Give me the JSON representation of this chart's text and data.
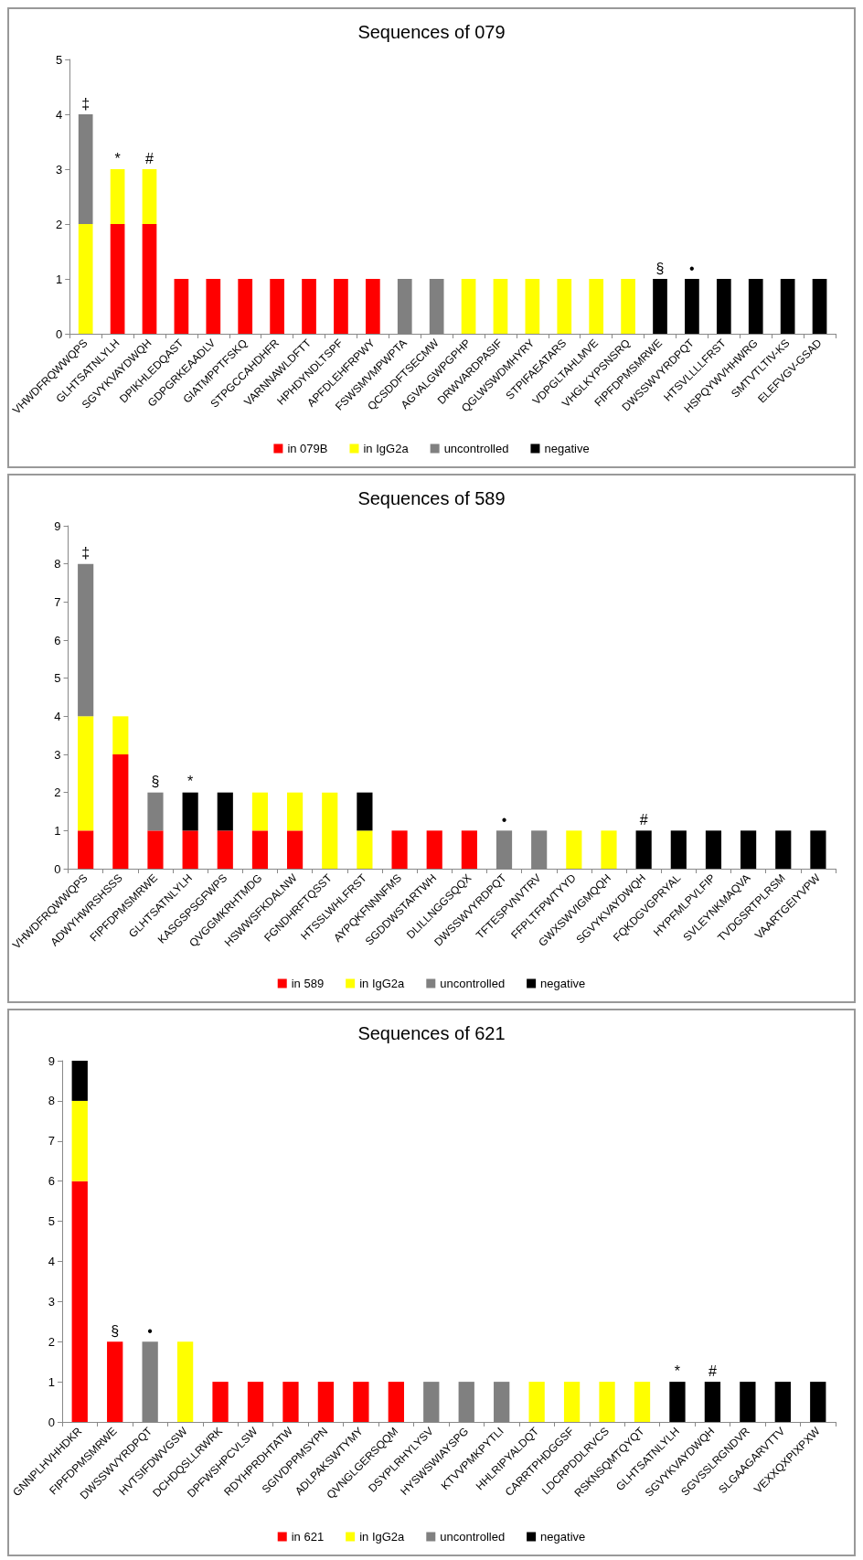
{
  "chart_data": [
    {
      "type": "bar",
      "title": "Sequences of 079",
      "stacked": true,
      "grid": false,
      "legend": "bottom",
      "categories": [
        "VHWDFRQWWQPS",
        "GLHTSATNLYLH",
        "SGVYKVAYDWQH",
        "DPIKHLEDQAST",
        "GDPGRKEAADLV",
        "GIATMPPTFSKQ",
        "STPGCCAHDHFR",
        "VARNNAWLDFTT",
        "HPHDYNDLTSPF",
        "APFDLEHFRPWY",
        "FSWSMVMPWPTA",
        "QCSDDFTSECMW",
        "AGVALGWPGPHP",
        "DRWVARDPASIF",
        "QGLWSWDMHYRY",
        "STPIFAEATARS",
        "VDPGLTAHLMVE",
        "VHGLKYPSNSRQ",
        "FIPFDPMSMRWE",
        "DWSSWVYRDPQT",
        "HTSVLLLLFRST",
        "HSPQYWVHHWRG",
        "SMTVTLTIV-KS",
        "ELEFVGV-GSAD"
      ],
      "series": [
        {
          "name": "in 079B",
          "color": "#ff0000",
          "values": [
            0,
            2,
            2,
            1,
            1,
            1,
            1,
            1,
            1,
            1,
            0,
            0,
            0,
            0,
            0,
            0,
            0,
            0,
            0,
            0,
            0,
            0,
            0,
            0
          ]
        },
        {
          "name": "in IgG2a",
          "color": "#ffff00",
          "values": [
            2,
            1,
            1,
            0,
            0,
            0,
            0,
            0,
            0,
            0,
            0,
            0,
            1,
            1,
            1,
            1,
            1,
            1,
            0,
            0,
            0,
            0,
            0,
            0
          ]
        },
        {
          "name": "uncontrolled",
          "color": "#808080",
          "values": [
            2,
            0,
            0,
            0,
            0,
            0,
            0,
            0,
            0,
            0,
            1,
            1,
            0,
            0,
            0,
            0,
            0,
            0,
            0,
            0,
            0,
            0,
            0,
            0
          ]
        },
        {
          "name": "negative",
          "color": "#000000",
          "values": [
            0,
            0,
            0,
            0,
            0,
            0,
            0,
            0,
            0,
            0,
            0,
            0,
            0,
            0,
            0,
            0,
            0,
            0,
            1,
            1,
            1,
            1,
            1,
            1
          ]
        }
      ],
      "ylim": [
        0,
        5
      ],
      "yticks": [
        0,
        1,
        2,
        3,
        4,
        5
      ],
      "annotations": [
        {
          "text": "‡",
          "x": "VHWDFRQWWQPS",
          "y": 4
        },
        {
          "text": "*",
          "x": "GLHTSATNLYLH",
          "y": 3
        },
        {
          "text": "#",
          "x": "SGVYKVAYDWQH",
          "y": 3
        },
        {
          "text": "§",
          "x": "FIPFDPMSMRWE",
          "y": 1
        },
        {
          "text": "•",
          "x": "DWSSWVYRDPQT",
          "y": 1
        }
      ]
    },
    {
      "type": "bar",
      "title": "Sequences of 589",
      "stacked": true,
      "grid": false,
      "legend": "bottom",
      "categories": [
        "VHWDFRQWWQPS",
        "ADWYHWRSHSSS",
        "FIPFDPMSMRWE",
        "GLHTSATNLYLH",
        "KASGSPSGFWPS",
        "QVGGMKRHTMDG",
        "HSWWSFKDALNW",
        "FGNDHRFTQSST",
        "HTSSLWHLFRST",
        "AYPQKFNNNFMS",
        "SGDDWSTARTWH",
        "DLILLNGGSQQX",
        "DWSSWVYRDPQT",
        "TFTESPVNVTRV",
        "FFPLTFPWTYYD",
        "GWXSWVIGMQQH",
        "SGVYKVAYDWQH",
        "FQKDGVGPRYAL",
        "HYPFMLPVLFIP",
        "SVLEYNKMAQVA",
        "TVDGSRTPLRSM",
        "VAARTGEIYVPW"
      ],
      "series": [
        {
          "name": "in 589",
          "color": "#ff0000",
          "values": [
            1,
            3,
            1,
            1,
            1,
            1,
            1,
            0,
            0,
            1,
            1,
            1,
            0,
            0,
            0,
            0,
            0,
            0,
            0,
            0,
            0,
            0
          ]
        },
        {
          "name": "in IgG2a",
          "color": "#ffff00",
          "values": [
            3,
            1,
            0,
            0,
            0,
            1,
            1,
            2,
            1,
            0,
            0,
            0,
            0,
            0,
            1,
            1,
            0,
            0,
            0,
            0,
            0,
            0
          ]
        },
        {
          "name": "uncontrolled",
          "color": "#808080",
          "values": [
            4,
            0,
            1,
            0,
            0,
            0,
            0,
            0,
            0,
            0,
            0,
            0,
            1,
            1,
            0,
            0,
            0,
            0,
            0,
            0,
            0,
            0
          ]
        },
        {
          "name": "negative",
          "color": "#000000",
          "values": [
            0,
            0,
            0,
            1,
            1,
            0,
            0,
            0,
            1,
            0,
            0,
            0,
            0,
            0,
            0,
            0,
            1,
            1,
            1,
            1,
            1,
            1
          ]
        }
      ],
      "ylim": [
        0,
        9
      ],
      "yticks": [
        0,
        1,
        2,
        3,
        4,
        5,
        6,
        7,
        8,
        9
      ],
      "annotations": [
        {
          "text": "‡",
          "x": "VHWDFRQWWQPS",
          "y": 8
        },
        {
          "text": "§",
          "x": "FIPFDPMSMRWE",
          "y": 2
        },
        {
          "text": "*",
          "x": "GLHTSATNLYLH",
          "y": 2
        },
        {
          "text": "•",
          "x": "DWSSWVYRDPQT",
          "y": 1
        },
        {
          "text": "#",
          "x": "SGVYKVAYDWQH",
          "y": 1
        }
      ]
    },
    {
      "type": "bar",
      "title": "Sequences of 621",
      "stacked": true,
      "grid": false,
      "legend": "bottom",
      "categories": [
        "GNNPLHVHHDKR",
        "FIPFDPMSMRWE",
        "DWSSWVYRDPQT",
        "HVTSIFDWVGSW",
        "DCHDQSLLRWRK",
        "DPFWSHPCVLSW",
        "RDYHPRDHTATW",
        "SGIVDPPMSYPN",
        "ADLPAKSWTYMY",
        "QVNGLGERSQQM",
        "DSYPLRHYLYSV",
        "HYSWSWIAYSPG",
        "KTVVPMKPYTLI",
        "HHLRIPYALDQT",
        "CARRTPHDGGSF",
        "LDCRPDDLRVCS",
        "RSKNSQMTQYQT",
        "GLHTSATNLYLH",
        "SGVYKVAYDWQH",
        "SGVSSLRGNDVR",
        "SLGAAGARVTTV",
        "VEXXQXPIXPXW"
      ],
      "series": [
        {
          "name": "in 621",
          "color": "#ff0000",
          "values": [
            6,
            2,
            0,
            0,
            1,
            1,
            1,
            1,
            1,
            1,
            0,
            0,
            0,
            0,
            0,
            0,
            0,
            0,
            0,
            0,
            0,
            0
          ]
        },
        {
          "name": "in IgG2a",
          "color": "#ffff00",
          "values": [
            2,
            0,
            0,
            2,
            0,
            0,
            0,
            0,
            0,
            0,
            0,
            0,
            0,
            1,
            1,
            1,
            1,
            0,
            0,
            0,
            0,
            0
          ]
        },
        {
          "name": "uncontrolled",
          "color": "#808080",
          "values": [
            0,
            0,
            2,
            0,
            0,
            0,
            0,
            0,
            0,
            0,
            1,
            1,
            1,
            0,
            0,
            0,
            0,
            0,
            0,
            0,
            0,
            0
          ]
        },
        {
          "name": "negative",
          "color": "#000000",
          "values": [
            1,
            0,
            0,
            0,
            0,
            0,
            0,
            0,
            0,
            0,
            0,
            0,
            0,
            0,
            0,
            0,
            0,
            1,
            1,
            1,
            1,
            1
          ]
        }
      ],
      "ylim": [
        0,
        9
      ],
      "yticks": [
        0,
        1,
        2,
        3,
        4,
        5,
        6,
        7,
        8,
        9
      ],
      "annotations": [
        {
          "text": "§",
          "x": "FIPFDPMSMRWE",
          "y": 2
        },
        {
          "text": "•",
          "x": "DWSSWVYRDPQT",
          "y": 2
        },
        {
          "text": "*",
          "x": "GLHTSATNLYLH",
          "y": 1
        },
        {
          "text": "#",
          "x": "SGVYKVAYDWQH",
          "y": 1
        }
      ]
    }
  ]
}
